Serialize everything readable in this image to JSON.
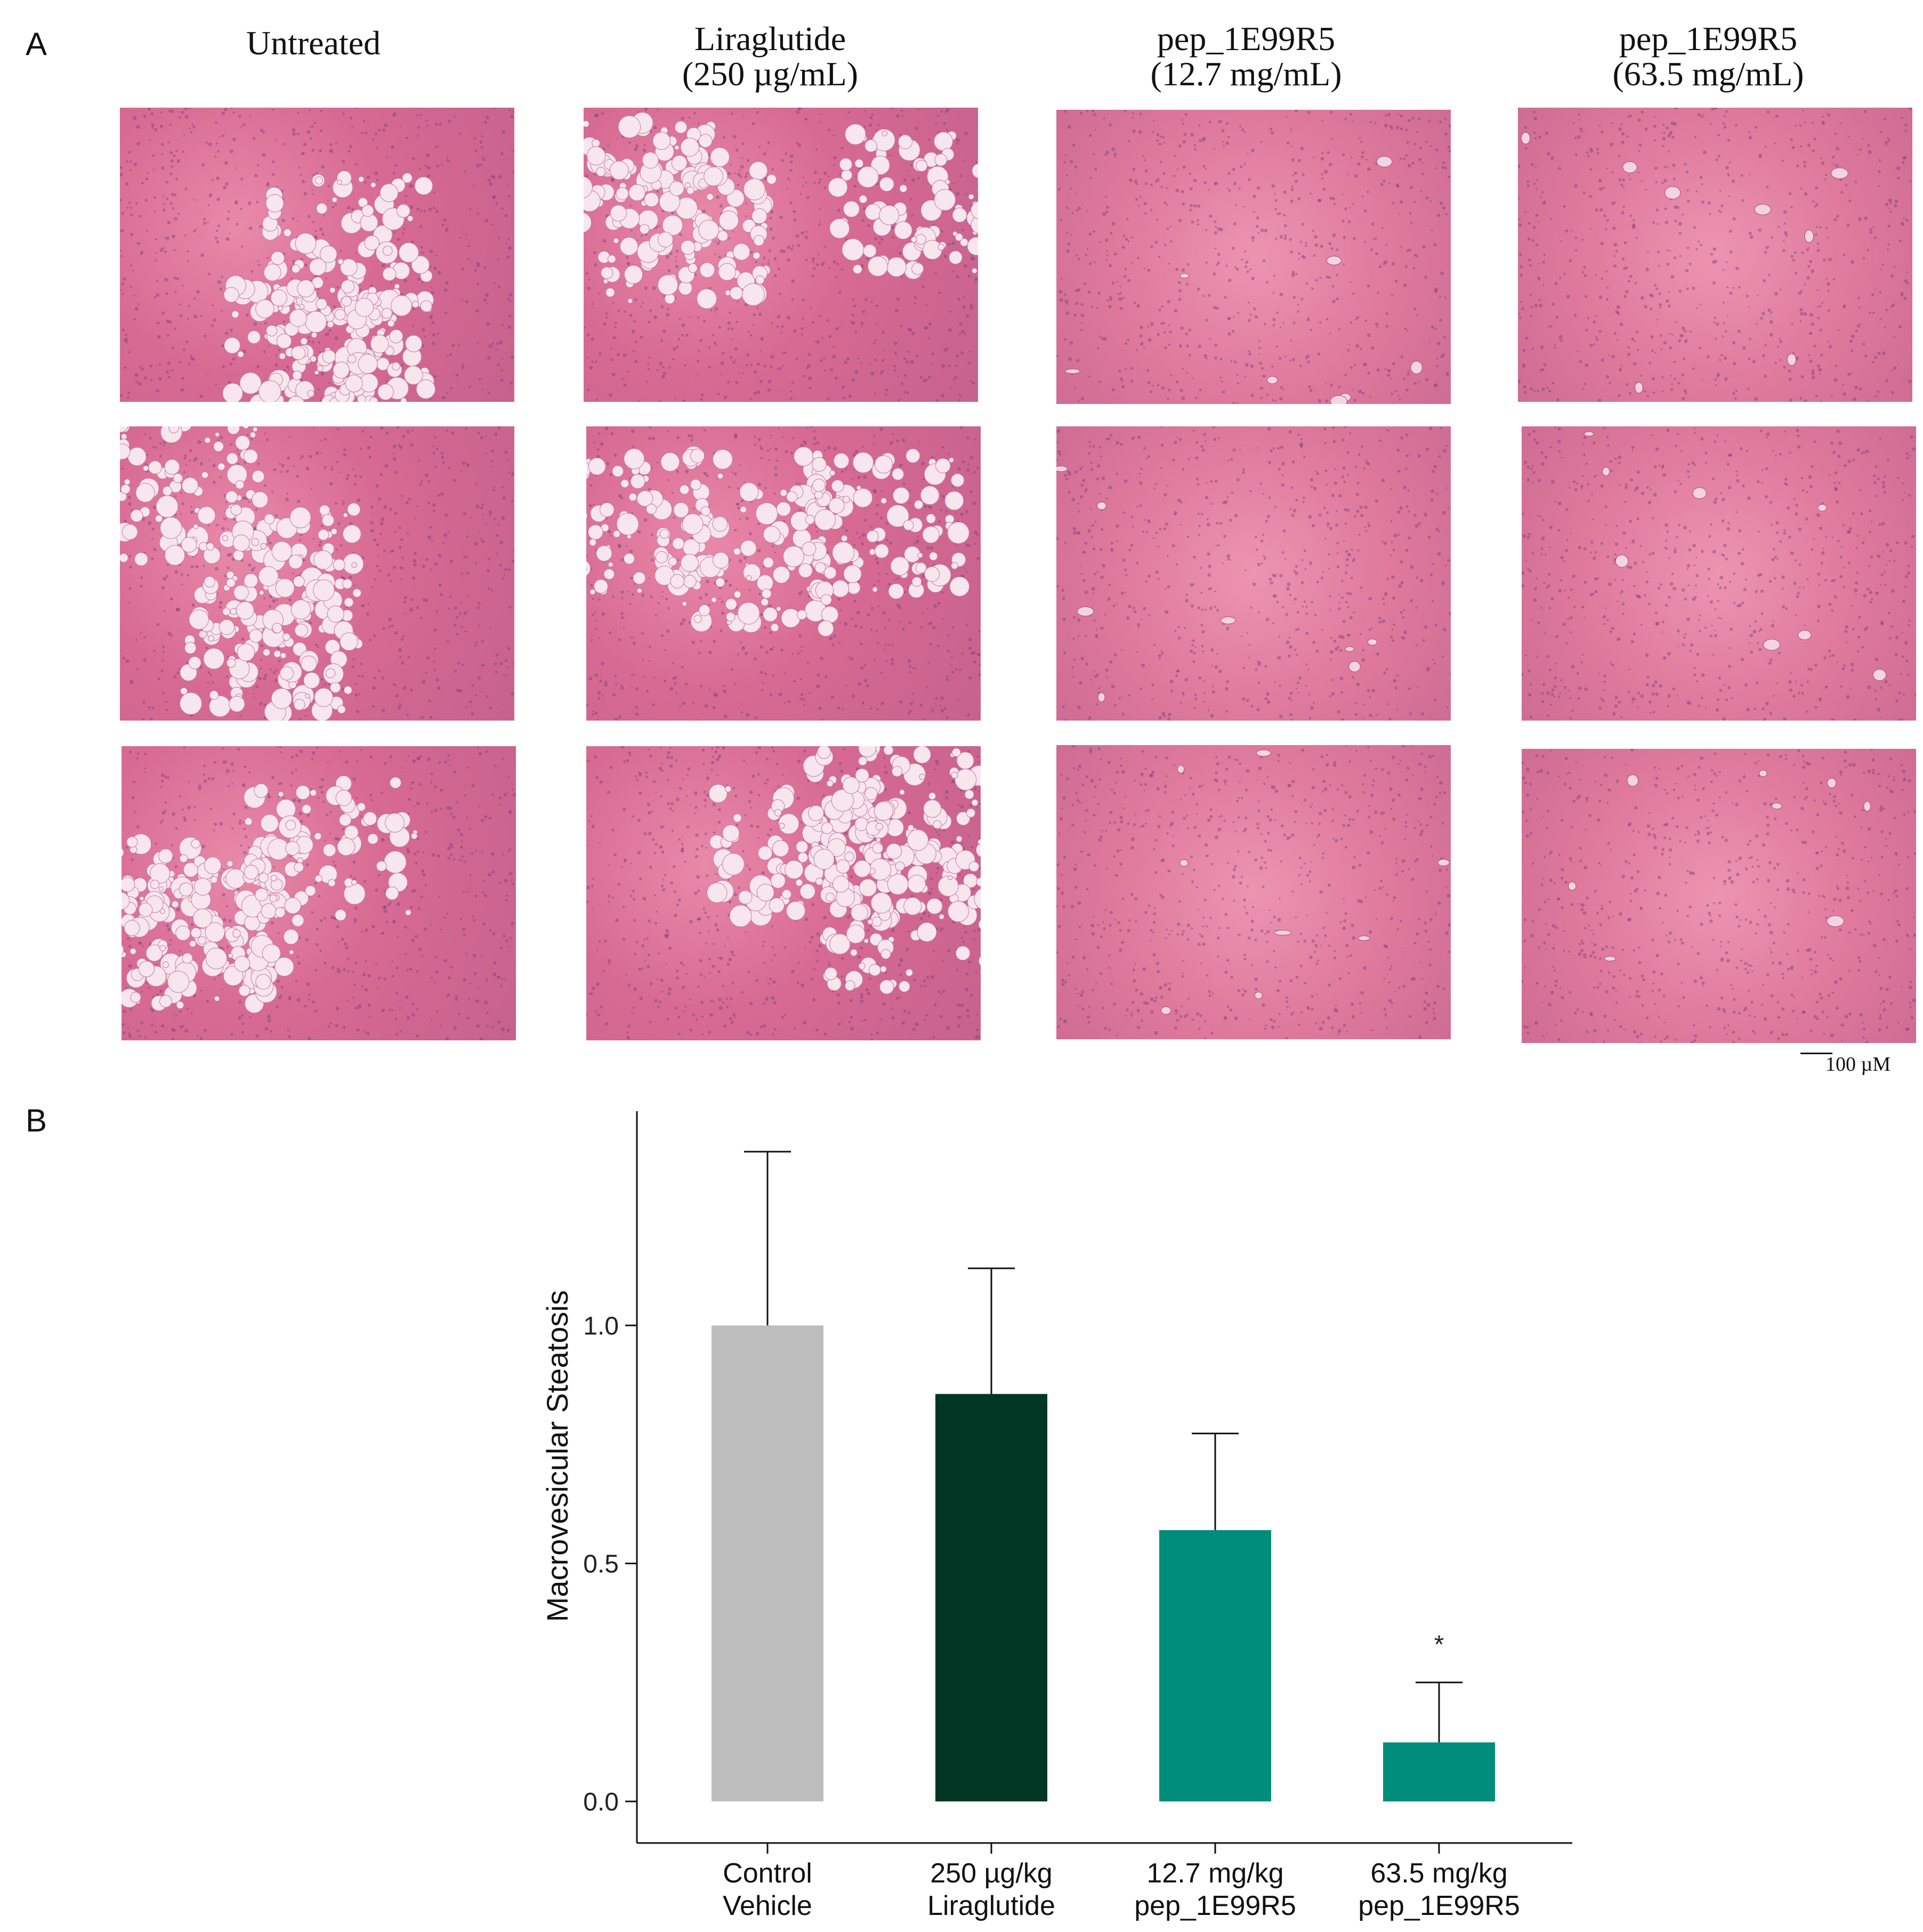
{
  "panel_a": {
    "letter": "A",
    "columns": [
      {
        "title_line1": "Untreated",
        "title_line2": ""
      },
      {
        "title_line1": "Liraglutide",
        "title_line2": "(250 µg/mL)"
      },
      {
        "title_line1": "pep_1E99R5",
        "title_line2": "(12.7 mg/mL)"
      },
      {
        "title_line1": "pep_1E99R5",
        "title_line2": "(63.5 mg/mL)"
      }
    ],
    "scale_bar_label": "100 µM"
  },
  "panel_b": {
    "letter": "B"
  },
  "chart_data": {
    "type": "bar",
    "categories": [
      [
        "Control",
        "Vehicle"
      ],
      [
        "250 µg/kg",
        "Liraglutide"
      ],
      [
        "12.7 mg/kg",
        "pep_1E99R5"
      ],
      [
        "63.5 mg/kg",
        "pep_1E99R5"
      ]
    ],
    "values": [
      1.0,
      0.856,
      0.57,
      0.124
    ],
    "error_upper": [
      1.365,
      1.12,
      0.773,
      0.25
    ],
    "significance": [
      "",
      "",
      "",
      "*"
    ],
    "bar_colors": [
      "#bdbdbd",
      "#003623",
      "#008c7a",
      "#008c7a"
    ],
    "ylabel": "Macrovesicular Steatosis",
    "xlabel": "",
    "ylim": [
      0,
      1.45
    ],
    "yticks": [
      0.0,
      0.5,
      1.0
    ],
    "ytick_labels": [
      "0.0",
      "0.5",
      "1.0"
    ],
    "grid": false
  }
}
